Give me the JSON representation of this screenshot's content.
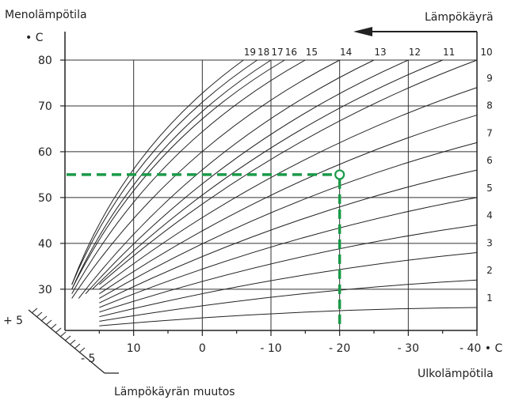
{
  "chart_data": {
    "type": "line",
    "ylabel": "Menolämpötila",
    "yunit": "• C",
    "xlabel": "Ulkolämpötila",
    "xunit": "• C",
    "curve_axis_label": "Lämpökäyrä",
    "offset_axis_label": "Lämpökäyrän muutos",
    "xlim": [
      20,
      -40
    ],
    "ylim": [
      21,
      80
    ],
    "x_tick_values": [
      10,
      0,
      -10,
      -20,
      -30,
      -40
    ],
    "x_tick_labels": [
      "10",
      "0",
      "- 10",
      "- 20",
      "- 30",
      "- 40"
    ],
    "y_tick_values": [
      30,
      40,
      50,
      60,
      70,
      80
    ],
    "y_tick_labels": [
      "30",
      "40",
      "50",
      "60",
      "70",
      "80"
    ],
    "offset_tick_labels": [
      "+ 5",
      "- 5"
    ],
    "grid": true,
    "accent_color": "#1a9a48",
    "example": {
      "outdoor_temp": -20,
      "flow_temp": 55,
      "curve": 14
    },
    "curves": [
      {
        "name": "1",
        "start": [
          15,
          22
        ],
        "end": [
          -40,
          26
        ]
      },
      {
        "name": "2",
        "start": [
          15,
          23
        ],
        "end": [
          -40,
          32
        ]
      },
      {
        "name": "3",
        "start": [
          15,
          24
        ],
        "end": [
          -40,
          38
        ]
      },
      {
        "name": "4",
        "start": [
          15,
          25
        ],
        "end": [
          -40,
          44
        ]
      },
      {
        "name": "5",
        "start": [
          15,
          26
        ],
        "end": [
          -40,
          50
        ]
      },
      {
        "name": "6",
        "start": [
          15,
          27
        ],
        "end": [
          -40,
          56
        ]
      },
      {
        "name": "7",
        "start": [
          15,
          28
        ],
        "end": [
          -40,
          62
        ]
      },
      {
        "name": "8",
        "start": [
          15,
          29
        ],
        "end": [
          -40,
          68
        ]
      },
      {
        "name": "9",
        "start": [
          15,
          30
        ],
        "end": [
          -40,
          74
        ]
      },
      {
        "name": "10",
        "start": [
          15,
          31
        ],
        "end": [
          -40,
          80
        ]
      },
      {
        "name": "11",
        "start": [
          16,
          30
        ],
        "end": [
          -35,
          80
        ]
      },
      {
        "name": "12",
        "start": [
          17,
          29
        ],
        "end": [
          -30,
          80
        ]
      },
      {
        "name": "13",
        "start": [
          18,
          28
        ],
        "end": [
          -25,
          80
        ]
      },
      {
        "name": "14",
        "start": [
          19,
          28
        ],
        "end": [
          -20,
          80
        ]
      },
      {
        "name": "15",
        "start": [
          19,
          29
        ],
        "end": [
          -15,
          80
        ]
      },
      {
        "name": "16",
        "start": [
          19,
          30
        ],
        "end": [
          -12,
          80
        ]
      },
      {
        "name": "17",
        "start": [
          19,
          30
        ],
        "end": [
          -10,
          80
        ]
      },
      {
        "name": "18",
        "start": [
          19,
          31
        ],
        "end": [
          -8,
          80
        ]
      },
      {
        "name": "19",
        "start": [
          19,
          31
        ],
        "end": [
          -6,
          80
        ]
      }
    ]
  },
  "labels": {
    "menolampotila": "Menolämpötila",
    "y_unit": "• C",
    "lampokayra": "Lämpökäyrä",
    "ulkolampotila": "Ulkolämpötila",
    "x_unit": "- 40 • C",
    "muutos": "Lämpökäyrän muutos",
    "plus5": "+ 5",
    "minus5": "- 5"
  }
}
